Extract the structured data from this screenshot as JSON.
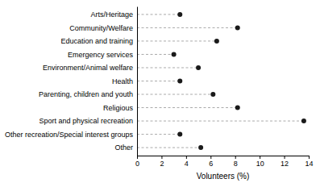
{
  "chart_data": {
    "type": "lollipop",
    "orientation": "horizontal",
    "categories": [
      "Arts/Heritage",
      "Community/Welfare",
      "Education and training",
      "Emergency services",
      "Environment/Animal welfare",
      "Health",
      "Parenting, children and youth",
      "Religious",
      "Sport and physical recreation",
      "Other recreation/Special interest groups",
      "Other"
    ],
    "values": [
      3.5,
      8.2,
      6.5,
      3.0,
      5.0,
      3.5,
      6.2,
      8.2,
      13.6,
      3.5,
      5.2
    ],
    "color": "#1a1a1a",
    "line_style": "dashed",
    "grid": false,
    "xlabel": "Volunteers (%)",
    "xlim": [
      0,
      14
    ],
    "xticks": [
      0,
      2,
      4,
      6,
      8,
      10,
      12,
      14
    ]
  }
}
